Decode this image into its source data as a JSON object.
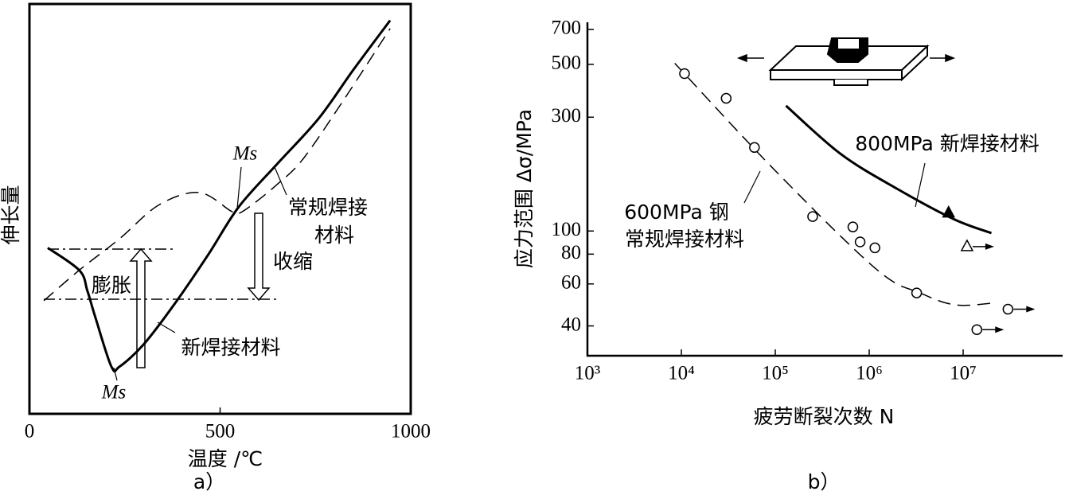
{
  "chart_data": [
    {
      "type": "line",
      "x_label": "温度 /℃",
      "y_label": "伸长量",
      "caption": "a）",
      "xlim": [
        0,
        1000
      ],
      "xticks": [
        0,
        500,
        1000
      ],
      "ylim": [
        0,
        100
      ],
      "annotations": [
        "Ms",
        "Ms",
        "膨胀",
        "收缩"
      ],
      "series": [
        {
          "name": "新焊接材料",
          "color": "#000000",
          "style": "solid",
          "x": [
            48,
            131,
            152,
            173,
            215,
            236,
            300,
            382,
            470,
            549,
            650,
            758,
            850,
            946
          ],
          "values": [
            40.5,
            35,
            30,
            23.5,
            11.5,
            11.5,
            17,
            27,
            39,
            50.5,
            61,
            72,
            84,
            96
          ]
        },
        {
          "name": [
            "常规焊接",
            "材料"
          ],
          "color": "#000000",
          "style": "dashed",
          "x": [
            38,
            130,
            236,
            340,
            445,
            528,
            549,
            591,
            650,
            716,
            820,
            946
          ],
          "values": [
            27.6,
            35,
            42.7,
            51,
            54,
            49.5,
            48.9,
            51.5,
            56,
            62,
            76,
            94
          ]
        }
      ]
    },
    {
      "type": "scatter",
      "x_label": "疲劳断裂次数 N",
      "y_label": "应力范围 Δσ/MPa",
      "caption": "b）",
      "xlog": true,
      "ylog": true,
      "xlim": [
        1000,
        100000000
      ],
      "xticks": [
        {
          "value": 1000,
          "label": "10³"
        },
        {
          "value": 10000,
          "label": "10⁴"
        },
        {
          "value": 100000,
          "label": "10⁵"
        },
        {
          "value": 1000000,
          "label": "10⁶"
        },
        {
          "value": 10000000,
          "label": "10⁷"
        }
      ],
      "ylim": [
        30,
        750
      ],
      "yticks": [
        40,
        60,
        80,
        100,
        300,
        500,
        700
      ],
      "series": [
        {
          "name": "800MPa 新焊接材料",
          "color": "#000000",
          "style": "solid",
          "x": [
            130000,
            500000,
            2000000,
            8000000,
            20000000
          ],
          "values": [
            335,
            210,
            150,
            112,
            98
          ]
        },
        {
          "name": [
            "600MPa 钢",
            "常规焊接材料"
          ],
          "color": "#000000",
          "style": "dashed",
          "x": [
            8500,
            100000,
            1200000,
            3500000,
            8300000,
            22000000
          ],
          "values": [
            505,
            179,
            69,
            55,
            49,
            50
          ]
        },
        {
          "color": "#000000",
          "marker": "circle",
          "x": [
            10800,
            30000,
            60000,
            250000,
            670000,
            800000,
            1150000,
            3200000,
            30000000,
            14000000
          ],
          "values": [
            457,
            360,
            224,
            115,
            104,
            90,
            85,
            55,
            47,
            38.6
          ],
          "runout": [
            false,
            false,
            false,
            false,
            false,
            false,
            false,
            false,
            true,
            true
          ]
        },
        {
          "color": "#000000",
          "marker": "triangle-filled",
          "x": [
            7000000
          ],
          "values": [
            119
          ],
          "runout": [
            false
          ]
        },
        {
          "color": "#000000",
          "marker": "triangle-open",
          "x": [
            11000000
          ],
          "values": [
            86
          ],
          "runout": [
            true
          ]
        }
      ]
    }
  ]
}
